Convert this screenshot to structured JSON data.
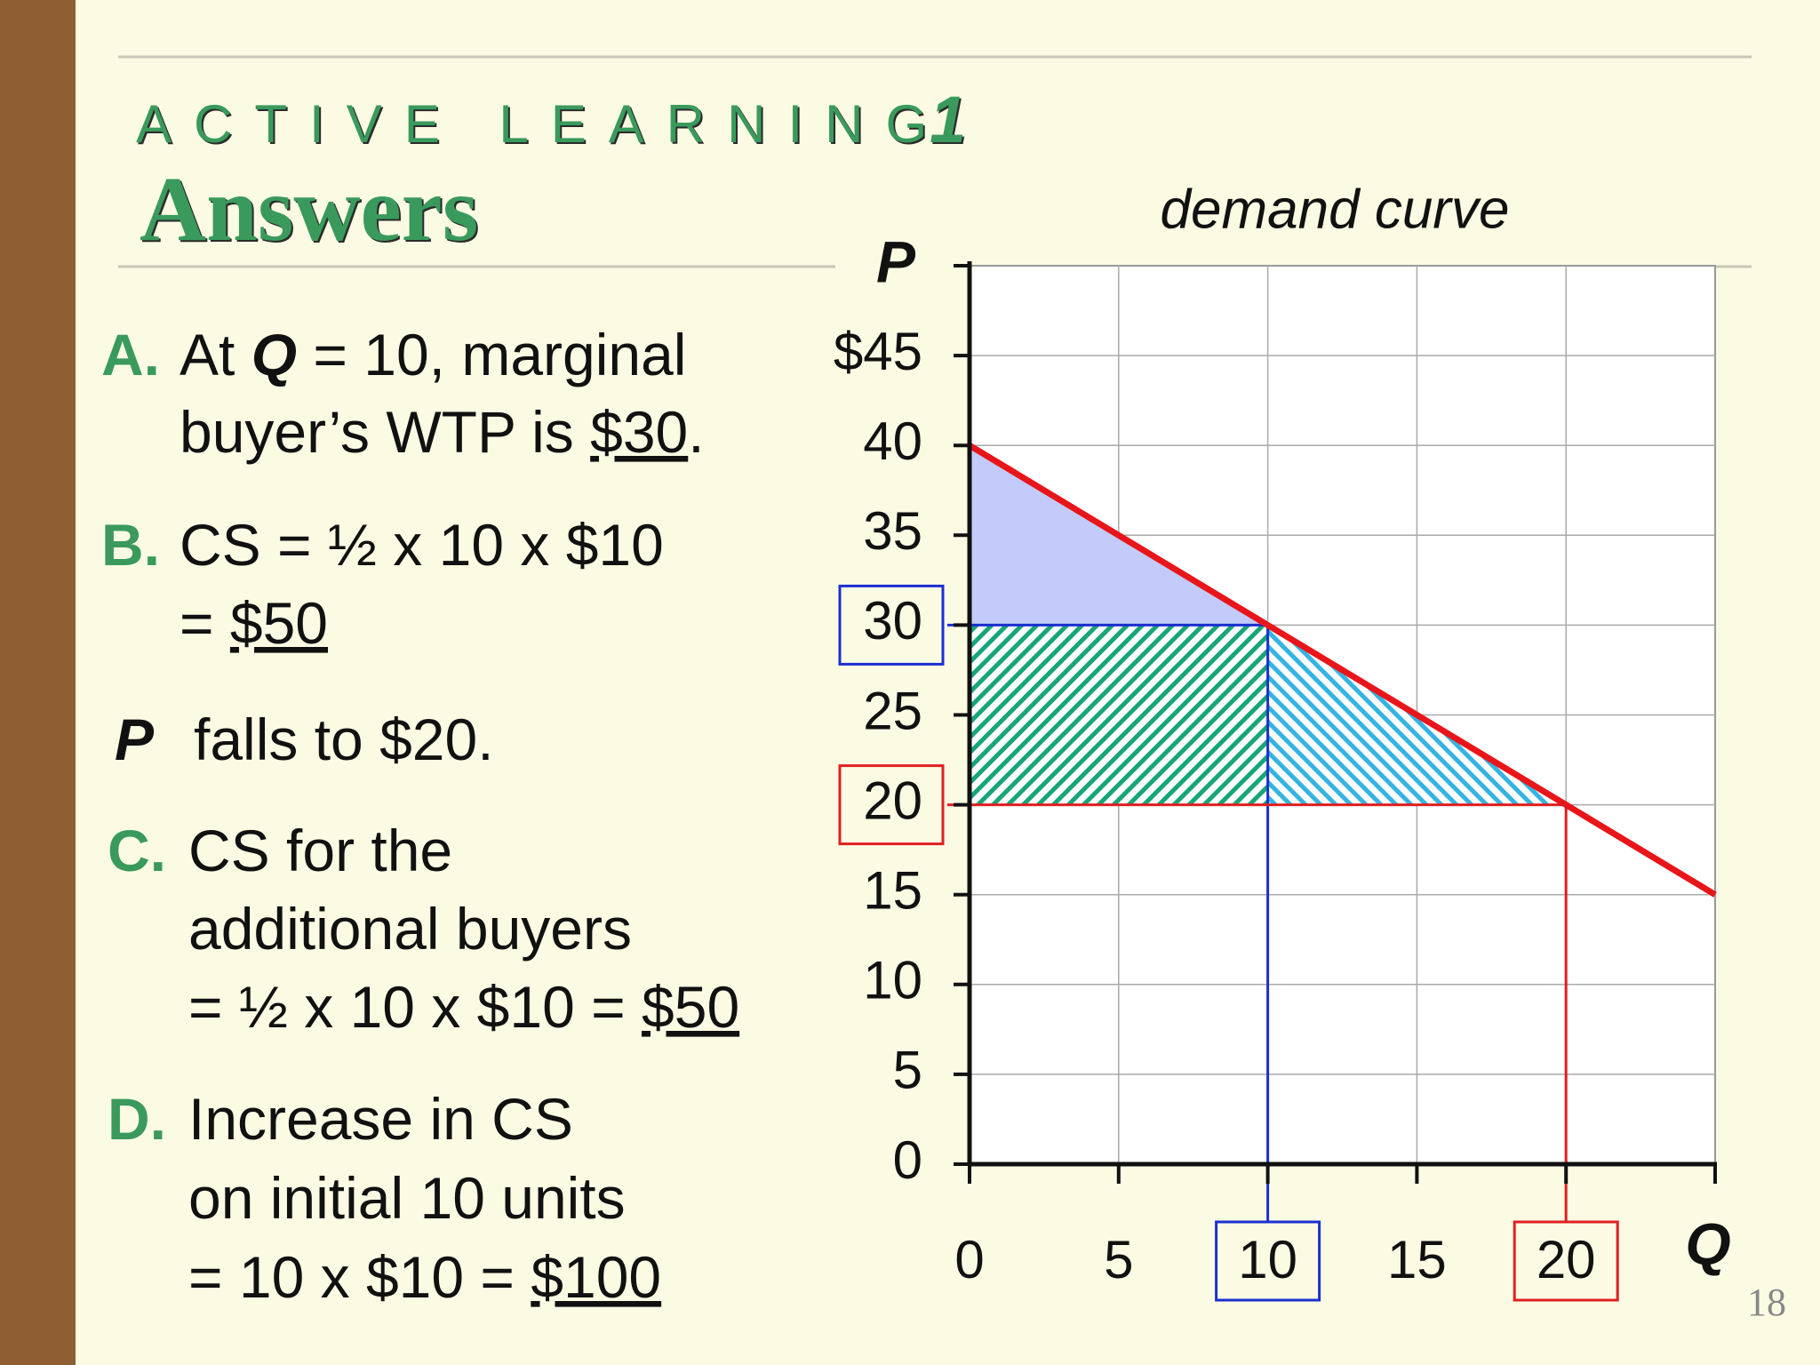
{
  "slide": {
    "header": "ACTIVE LEARNING",
    "header_number": "1",
    "subtitle": "Answers",
    "items": [
      {
        "letter": "A.",
        "lines": [
          [
            "At ",
            "Q",
            " = 10, marginal"
          ],
          [
            "buyer’s WTP is ",
            "$30",
            "."
          ]
        ]
      },
      {
        "letter": "B.",
        "lines": [
          [
            "CS = ½ x 10 x $10"
          ],
          [
            "= ",
            "$50"
          ]
        ]
      },
      {
        "lines": [
          [
            "P",
            "falls to $20."
          ]
        ]
      },
      {
        "letter": "C.",
        "lines": [
          [
            "CS for the"
          ],
          [
            "additional buyers"
          ],
          [
            "= ½ x 10 x $10 = ",
            "$50"
          ]
        ]
      },
      {
        "letter": "D.",
        "lines": [
          [
            "Increase in CS"
          ],
          [
            "on initial 10 units"
          ],
          [
            "= 10 x $10 = ",
            "$100"
          ]
        ]
      }
    ],
    "page_number": "18"
  },
  "chart_data": {
    "type": "line",
    "title": "demand curve",
    "x_label": "Q",
    "y_label": "P",
    "x": [
      0,
      25
    ],
    "series": [
      {
        "color": "#e8161b",
        "values": [
          40,
          15
        ]
      }
    ],
    "xlim": [
      0,
      25
    ],
    "ylim": [
      0,
      50
    ],
    "xticks": [
      0,
      5,
      10,
      15,
      20
    ],
    "yticks": [
      0,
      5,
      10,
      15,
      20,
      25,
      30,
      35,
      40,
      {
        "value": 45,
        "label": "$45"
      }
    ],
    "grid": true,
    "initial_price": 30,
    "new_price": 20,
    "initial_quantity": 10,
    "new_quantity": 20,
    "initial_color": "#1c2fd0",
    "new_color": "#e02020",
    "surplus_color": "#c3cbfb",
    "rect_hatch_color": "#17a57a",
    "triangle_hatch_color": "#35b4e3"
  }
}
